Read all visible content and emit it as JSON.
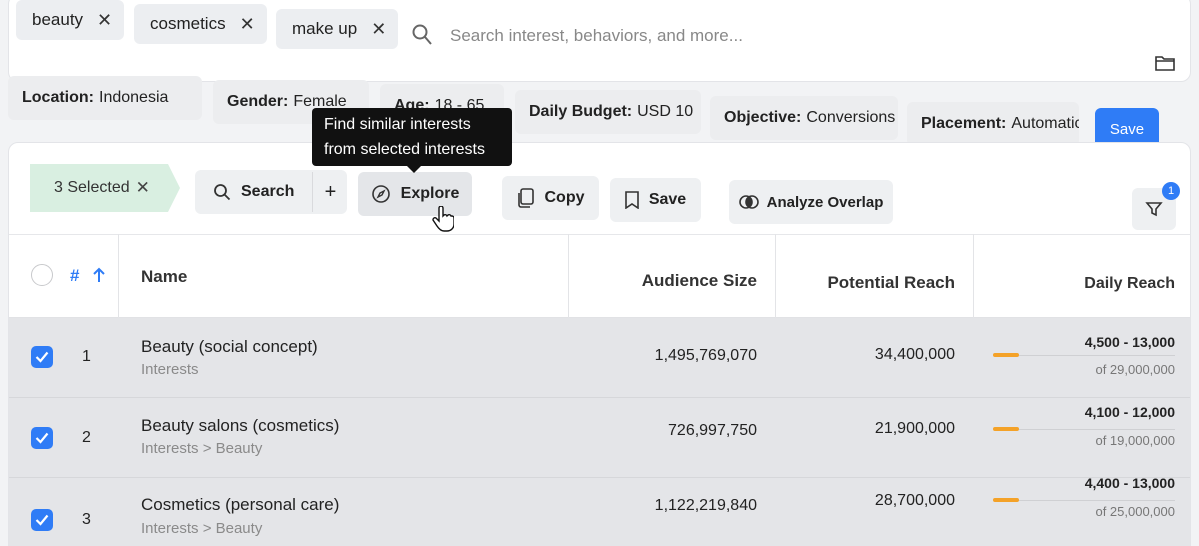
{
  "search": {
    "tags": [
      "beauty",
      "cosmetics",
      "make up"
    ],
    "placeholder": "Search interest, behaviors, and more..."
  },
  "settings": [
    {
      "label": "Location:",
      "value": "Indonesia"
    },
    {
      "label": "Gender:",
      "value": "Female"
    },
    {
      "label": "Age:",
      "value": "18 - 65"
    },
    {
      "label": "Daily Budget:",
      "value": "USD 10"
    },
    {
      "label": "Objective:",
      "value": "Conversions"
    },
    {
      "label": "Placement:",
      "value": "Automatic"
    }
  ],
  "save_primary_label": "Save",
  "toolbar": {
    "selected_label": "3 Selected",
    "search_label": "Search",
    "explore_label": "Explore",
    "copy_label": "Copy",
    "save_label": "Save",
    "analyze_label": "Analyze Overlap",
    "filter_badge": "1"
  },
  "tooltip": {
    "line1": "Find similar interests",
    "line2": "from selected interests"
  },
  "table": {
    "headers": {
      "index": "#",
      "name": "Name",
      "audience": "Audience Size",
      "potential": "Potential Reach",
      "daily": "Daily Reach"
    },
    "rows": [
      {
        "index": "1",
        "name": "Beauty (social concept)",
        "path": "Interests",
        "audience": "1,495,769,070",
        "potential": "34,400,000",
        "daily": "4,500 - 13,000",
        "daily_of": "of 29,000,000",
        "fill": 0.16,
        "checked": true
      },
      {
        "index": "2",
        "name": "Beauty salons (cosmetics)",
        "path": "Interests > Beauty",
        "audience": "726,997,750",
        "potential": "21,900,000",
        "daily": "4,100 - 12,000",
        "daily_of": "of 19,000,000",
        "fill": 0.16,
        "checked": true
      },
      {
        "index": "3",
        "name": "Cosmetics (personal care)",
        "path": "Interests > Beauty",
        "audience": "1,122,219,840",
        "potential": "28,700,000",
        "daily": "4,400 - 13,000",
        "daily_of": "of 25,000,000",
        "fill": 0.16,
        "checked": true
      }
    ]
  },
  "colors": {
    "accent": "#2f7cf6",
    "reach_bar": "#f4a228",
    "selected_bg": "#d9efe1"
  }
}
